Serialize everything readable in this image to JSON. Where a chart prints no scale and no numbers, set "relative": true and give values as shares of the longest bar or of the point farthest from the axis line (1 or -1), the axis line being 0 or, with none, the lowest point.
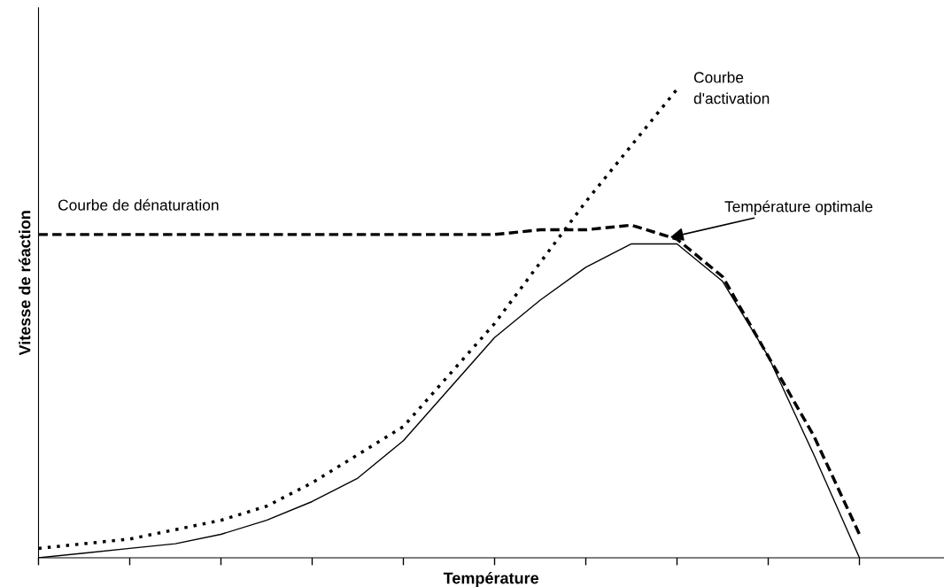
{
  "chart_data": {
    "type": "line",
    "relative": true,
    "xlabel": "Température",
    "ylabel": "Vitesse de réaction",
    "categories": [
      null,
      null,
      null,
      null,
      null,
      null,
      null,
      null,
      null,
      null,
      null,
      null,
      null,
      null,
      null,
      null,
      null,
      null,
      null
    ],
    "series": [
      {
        "color": "#000000",
        "line_style": "solid",
        "values": [
          0,
          0.01,
          0.02,
          0.03,
          0.05,
          0.08,
          0.12,
          0.17,
          0.25,
          0.36,
          0.47,
          0.55,
          0.62,
          0.67,
          0.67,
          0.59,
          0.43,
          0.22,
          0
        ]
      },
      {
        "name": "Courbe de dénaturation",
        "color": "#000000",
        "line_style": "dashed",
        "values": [
          0.69,
          0.69,
          0.69,
          0.69,
          0.69,
          0.69,
          0.69,
          0.69,
          0.69,
          0.69,
          0.69,
          0.7,
          0.7,
          0.71,
          0.68,
          0.6,
          0.43,
          0.26,
          0.05
        ]
      },
      {
        "name": "Courbe d'activation",
        "color": "#000000",
        "line_style": "dotted",
        "values": [
          0.02,
          0.03,
          0.04,
          0.06,
          0.08,
          0.11,
          0.16,
          0.22,
          0.28,
          0.39,
          0.5,
          0.63,
          0.76,
          0.88,
          1.0,
          null,
          null,
          null,
          null
        ]
      }
    ],
    "annotations": [
      "Température optimale"
    ],
    "grid": false,
    "legend": false,
    "marker": "none"
  }
}
